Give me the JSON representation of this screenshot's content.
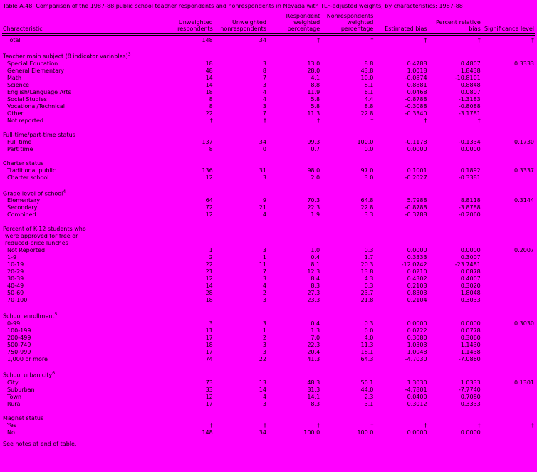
{
  "page": {
    "background": "#ff00ff",
    "title": "Table A.48. Comparison of the 1987-88 public school teacher respondents and nonrespondents in Nevada with TLF-adjusted weights, by characteristics: 1987-88",
    "footer": "See notes at end of table."
  },
  "table": {
    "columns": [
      "Characteristic",
      "Unweighted respondents",
      "Unweighted nonrespondents",
      "Respondent weighted percentage",
      "Nonrespondents weighted percentage",
      "Estimated bias",
      "Percent relative bias",
      "Significance level"
    ],
    "total_row": {
      "label": "Total",
      "values": [
        "148",
        "34",
        "†",
        "†",
        "†",
        "†",
        "†"
      ]
    },
    "sections": [
      {
        "header_lines": [
          "Teacher main subject (8 indicator variables)"
        ],
        "header_sup": "3",
        "rows": [
          {
            "label": "Special Education",
            "values": [
              "18",
              "3",
              "13.0",
              "8.8",
              "0.4788",
              "0.4807",
              "0.3333"
            ]
          },
          {
            "label": "General Elementary",
            "values": [
              "48",
              "8",
              "28.0",
              "43.8",
              "1.0018",
              "1.8438",
              ""
            ]
          },
          {
            "label": "Math",
            "values": [
              "14",
              "7",
              "4.1",
              "10.0",
              "-0.0874",
              "-10.8101",
              ""
            ]
          },
          {
            "label": "Science",
            "values": [
              "14",
              "3",
              "8.8",
              "8.1",
              "0.8881",
              "0.8848",
              ""
            ]
          },
          {
            "label": "English/Language Arts",
            "values": [
              "18",
              "4",
              "11.9",
              "6.1",
              "0.0468",
              "0.0807",
              ""
            ]
          },
          {
            "label": "Social Studies",
            "values": [
              "8",
              "4",
              "5.8",
              "4.4",
              "-0.8788",
              "-1.3183",
              ""
            ]
          },
          {
            "label": "Vocational/Technical",
            "values": [
              "8",
              "3",
              "5.8",
              "8.8",
              "-0.3088",
              "-0.8088",
              ""
            ]
          },
          {
            "label": "Other",
            "values": [
              "22",
              "7",
              "11.3",
              "22.8",
              "-0.3340",
              "-3.1781",
              ""
            ]
          },
          {
            "label": "Not reported",
            "values": [
              "†",
              "†",
              "†",
              "†",
              "†",
              "†",
              ""
            ]
          }
        ]
      },
      {
        "header_lines": [
          "Full-time/part-time status"
        ],
        "header_sup": "",
        "rows": [
          {
            "label": "Full time",
            "values": [
              "137",
              "34",
              "99.3",
              "100.0",
              "-0.1178",
              "-0.1334",
              "0.1730"
            ]
          },
          {
            "label": "Part time",
            "values": [
              "8",
              "0",
              "0.7",
              "0.0",
              "0.0000",
              "0.0000",
              ""
            ]
          }
        ]
      },
      {
        "header_lines": [
          "Charter status"
        ],
        "header_sup": "",
        "rows": [
          {
            "label": "Traditional public",
            "values": [
              "136",
              "31",
              "98.0",
              "97.0",
              "0.1001",
              "0.1892",
              "0.3337"
            ]
          },
          {
            "label": "Charter school",
            "values": [
              "12",
              "3",
              "2.0",
              "3.0",
              "-0.2027",
              "-0.3381",
              ""
            ]
          }
        ]
      },
      {
        "header_lines": [
          "Grade level of school"
        ],
        "header_sup": "4",
        "rows": [
          {
            "label": "Elementary",
            "values": [
              "64",
              "9",
              "70.3",
              "64.8",
              "5.7988",
              "8.8118",
              "0.3144"
            ]
          },
          {
            "label": "Secondary",
            "values": [
              "72",
              "21",
              "22.3",
              "22.8",
              "-0.8788",
              "-3.8788",
              ""
            ]
          },
          {
            "label": "Combined",
            "values": [
              "12",
              "4",
              "1.9",
              "3.3",
              "-0.3788",
              "-0.2060",
              ""
            ]
          }
        ]
      },
      {
        "header_lines": [
          "Percent of K-12 students who",
          "were approved for free or",
          "reduced-price lunches"
        ],
        "header_sup": "",
        "rows": [
          {
            "label": "Not Reported",
            "values": [
              "1",
              "3",
              "1.0",
              "0.3",
              "0.0000",
              "0.0000",
              "0.2007"
            ]
          },
          {
            "label": "1-9",
            "values": [
              "2",
              "1",
              "0.4",
              "1.7",
              "0.3333",
              "0.3007",
              ""
            ]
          },
          {
            "label": "10-19",
            "values": [
              "22",
              "11",
              "8.1",
              "20.3",
              "-12.0742",
              "-23.7481",
              ""
            ]
          },
          {
            "label": "20-29",
            "values": [
              "21",
              "7",
              "12.3",
              "13.8",
              "0.0210",
              "0.0878",
              ""
            ]
          },
          {
            "label": "30-39",
            "values": [
              "12",
              "3",
              "8.4",
              "4.3",
              "0.4302",
              "0.4007",
              ""
            ]
          },
          {
            "label": "40-49",
            "values": [
              "14",
              "4",
              "8.3",
              "0.3",
              "0.2103",
              "0.3020",
              ""
            ]
          },
          {
            "label": "50-69",
            "values": [
              "28",
              "2",
              "27.3",
              "23.7",
              "0.8303",
              "1.8048",
              ""
            ]
          },
          {
            "label": "70-100",
            "values": [
              "18",
              "3",
              "23.3",
              "21.8",
              "0.2104",
              "0.3033",
              ""
            ]
          }
        ]
      },
      {
        "header_lines": [
          "School enrollment"
        ],
        "header_sup": "5",
        "rows": [
          {
            "label": "0-99",
            "values": [
              "3",
              "3",
              "0.4",
              "0.3",
              "0.0000",
              "0.0000",
              "0.3030"
            ]
          },
          {
            "label": "100-199",
            "values": [
              "11",
              "1",
              "1.3",
              "0.0",
              "0.0722",
              "0.0778",
              ""
            ]
          },
          {
            "label": "200-499",
            "values": [
              "17",
              "2",
              "7.0",
              "4.0",
              "0.3080",
              "0.3060",
              ""
            ]
          },
          {
            "label": "500-749",
            "values": [
              "18",
              "3",
              "22.3",
              "11.3",
              "1.0303",
              "1.1430",
              ""
            ]
          },
          {
            "label": "750-999",
            "values": [
              "17",
              "3",
              "20.4",
              "18.1",
              "1.0048",
              "1.1438",
              ""
            ]
          },
          {
            "label": "1,000 or more",
            "values": [
              "74",
              "22",
              "41.3",
              "64.3",
              "-4.7030",
              "-7.0860",
              ""
            ]
          }
        ]
      },
      {
        "header_lines": [
          "School urbanicity"
        ],
        "header_sup": "6",
        "rows": [
          {
            "label": "City",
            "values": [
              "73",
              "13",
              "48.3",
              "50.1",
              "1.3030",
              "1.0333",
              "0.1301"
            ]
          },
          {
            "label": "Suburban",
            "values": [
              "33",
              "14",
              "31.3",
              "44.0",
              "-4.7801",
              "-7.7740",
              ""
            ]
          },
          {
            "label": "Town",
            "values": [
              "12",
              "4",
              "14.1",
              "2.3",
              "0.0400",
              "0.7080",
              ""
            ]
          },
          {
            "label": "Rural",
            "values": [
              "17",
              "3",
              "8.3",
              "3.1",
              "0.3012",
              "0.3333",
              ""
            ]
          }
        ]
      },
      {
        "header_lines": [
          "Magnet status"
        ],
        "header_sup": "",
        "rows": [
          {
            "label": "Yes",
            "values": [
              "†",
              "†",
              "†",
              "†",
              "†",
              "†",
              "†"
            ]
          },
          {
            "label": "No",
            "values": [
              "148",
              "34",
              "100.0",
              "100.0",
              "0.0000",
              "0.0000",
              ""
            ]
          }
        ]
      }
    ]
  }
}
